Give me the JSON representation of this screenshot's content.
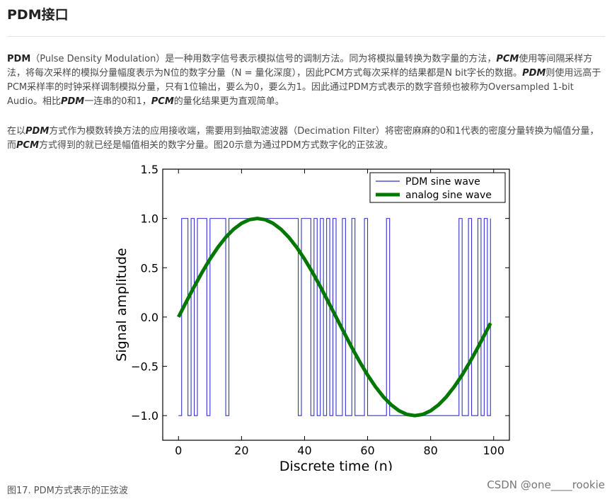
{
  "heading": "PDM接口",
  "paragraph1": {
    "b1": "PDM",
    "t1": "（Pulse Density Modulation）是一种用数字信号表示模拟信号的调制方法。同为将模拟量转换为数字量的方法，",
    "b2": "PCM",
    "t2": "使用等间隔采样方法，将每次采样的模拟分量幅度表示为N位的数字分量（N = 量化深度），因此PCM方式每次采样的结果都是N bit字长的数据。",
    "b3": "PDM",
    "t3": "则使用远高于PCM采样率的时钟采样调制模拟分量，只有1位输出，要么为0，要么为1。因此通过PDM方式表示的数字音频也被称为Oversampled 1-bit Audio。相比",
    "b4": "PDM",
    "t4": "一连串的0和1，",
    "b5": "PCM",
    "t5": "的量化结果更为直观简单。"
  },
  "paragraph2": {
    "t1": "在以",
    "b1": "PDM",
    "t2": "方式作为模数转换方法的应用接收端，需要用到抽取滤波器（Decimation Filter）将密密麻麻的0和1代表的密度分量转换为幅值分量，而",
    "b2": "PCM",
    "t3": "方式得到的就已经是幅值相关的数字分量。图20示意为通过PDM方式数字化的正弦波。"
  },
  "caption": "图17. PDM方式表示的正弦波",
  "watermark": "CSDN @one____rookie",
  "chart_data": {
    "type": "line",
    "title": "",
    "xlabel": "Discrete time (n)",
    "ylabel": "Signal amplitude",
    "xlim": [
      -5,
      105
    ],
    "ylim": [
      -1.25,
      1.5
    ],
    "xticks": [
      0,
      20,
      40,
      60,
      80,
      100
    ],
    "yticks": [
      -1.0,
      -0.5,
      0.0,
      0.5,
      1.0,
      1.5
    ],
    "xtick_labels": [
      "0",
      "20",
      "40",
      "60",
      "80",
      "100"
    ],
    "ytick_labels": [
      "−1.0",
      "−0.5",
      "0.0",
      "0.5",
      "1.0",
      "1.5"
    ],
    "grid": false,
    "legend_position": "top-right",
    "series": [
      {
        "name": "PDM sine wave",
        "color": "#3333cc",
        "kind": "step",
        "x": [
          0,
          1,
          2,
          3,
          4,
          5,
          6,
          7,
          8,
          9,
          10,
          11,
          12,
          13,
          14,
          15,
          16,
          17,
          18,
          19,
          20,
          21,
          22,
          23,
          24,
          25,
          26,
          27,
          28,
          29,
          30,
          31,
          32,
          33,
          34,
          35,
          36,
          37,
          38,
          39,
          40,
          41,
          42,
          43,
          44,
          45,
          46,
          47,
          48,
          49,
          50,
          51,
          52,
          53,
          54,
          55,
          56,
          57,
          58,
          59,
          60,
          61,
          62,
          63,
          64,
          65,
          66,
          67,
          68,
          69,
          70,
          71,
          72,
          73,
          74,
          75,
          76,
          77,
          78,
          79,
          80,
          81,
          82,
          83,
          84,
          85,
          86,
          87,
          88,
          89,
          90,
          91,
          92,
          93,
          94,
          95,
          96,
          97,
          98,
          99
        ],
        "values": [
          -1,
          1,
          1,
          -1,
          1,
          -1,
          1,
          1,
          1,
          -1,
          1,
          1,
          1,
          1,
          1,
          -1,
          1,
          1,
          1,
          1,
          1,
          1,
          1,
          1,
          1,
          1,
          1,
          1,
          1,
          1,
          1,
          1,
          1,
          1,
          1,
          1,
          1,
          1,
          -1,
          1,
          1,
          1,
          -1,
          1,
          -1,
          1,
          -1,
          1,
          -1,
          1,
          -1,
          -1,
          1,
          -1,
          -1,
          1,
          -1,
          -1,
          -1,
          1,
          -1,
          -1,
          -1,
          -1,
          -1,
          -1,
          1,
          -1,
          -1,
          -1,
          -1,
          -1,
          -1,
          -1,
          -1,
          -1,
          -1,
          -1,
          -1,
          -1,
          -1,
          -1,
          -1,
          -1,
          -1,
          -1,
          -1,
          -1,
          -1,
          1,
          -1,
          -1,
          1,
          -1,
          -1,
          1,
          -1,
          1,
          -1,
          1
        ]
      },
      {
        "name": "analog sine wave",
        "color": "#007700",
        "kind": "line",
        "x": [
          0,
          2.5,
          5,
          7.5,
          10,
          12.5,
          15,
          17.5,
          20,
          22.5,
          25,
          27.5,
          30,
          32.5,
          35,
          37.5,
          40,
          42.5,
          45,
          47.5,
          50,
          52.5,
          55,
          57.5,
          60,
          62.5,
          65,
          67.5,
          70,
          72.5,
          75,
          77.5,
          80,
          82.5,
          85,
          87.5,
          90,
          92.5,
          95,
          97.5,
          99
        ],
        "values": [
          0.0,
          0.156,
          0.309,
          0.454,
          0.588,
          0.707,
          0.809,
          0.891,
          0.951,
          0.988,
          1.0,
          0.988,
          0.951,
          0.891,
          0.809,
          0.707,
          0.588,
          0.454,
          0.309,
          0.156,
          0.0,
          -0.156,
          -0.309,
          -0.454,
          -0.588,
          -0.707,
          -0.809,
          -0.891,
          -0.951,
          -0.988,
          -1.0,
          -0.988,
          -0.951,
          -0.891,
          -0.809,
          -0.707,
          -0.588,
          -0.454,
          -0.309,
          -0.156,
          -0.063
        ]
      }
    ]
  }
}
